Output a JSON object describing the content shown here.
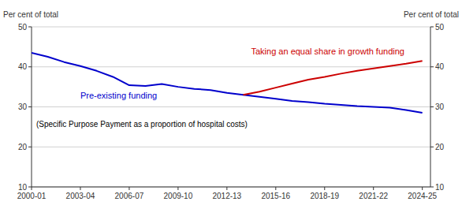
{
  "chart_data": {
    "type": "line",
    "x": [
      2000,
      2001,
      2002,
      2003,
      2004,
      2005,
      2006,
      2007,
      2008,
      2009,
      2010,
      2011,
      2012,
      2013,
      2014,
      2015,
      2016,
      2017,
      2018,
      2019,
      2020,
      2021,
      2022,
      2023,
      2024
    ],
    "series": [
      {
        "name": "Pre-existing funding",
        "color": "#0000cc",
        "values": [
          43.5,
          42.5,
          41.2,
          40.2,
          39.0,
          37.5,
          35.4,
          35.2,
          35.7,
          35.0,
          34.5,
          34.2,
          33.5,
          33.0,
          32.5,
          32.0,
          31.5,
          31.2,
          30.8,
          30.5,
          30.2,
          30.0,
          29.8,
          29.2,
          28.5
        ]
      },
      {
        "name": "Taking an equal share in growth funding",
        "color": "#cc0000",
        "values": [
          null,
          null,
          null,
          null,
          null,
          null,
          null,
          null,
          null,
          null,
          null,
          null,
          null,
          33.0,
          33.8,
          34.8,
          35.8,
          36.8,
          37.5,
          38.3,
          39.0,
          39.6,
          40.2,
          40.8,
          41.5
        ]
      }
    ],
    "xlim": [
      2000,
      2024.5
    ],
    "xticks": [
      {
        "value": 2000,
        "label": "2000-01"
      },
      {
        "value": 2003,
        "label": "2003-04"
      },
      {
        "value": 2006,
        "label": "2006-07"
      },
      {
        "value": 2009,
        "label": "2009-10"
      },
      {
        "value": 2012,
        "label": "2012-13"
      },
      {
        "value": 2015,
        "label": "2015-16"
      },
      {
        "value": 2018,
        "label": "2018-19"
      },
      {
        "value": 2021,
        "label": "2021-22"
      },
      {
        "value": 2024,
        "label": "2024-25"
      }
    ],
    "ylim": [
      10,
      50
    ],
    "yticks": [
      10,
      20,
      30,
      40,
      50
    ],
    "y2lim": [
      10,
      50
    ],
    "y2ticks": [
      10,
      20,
      30,
      40,
      50
    ],
    "ylabel": "Per cent of total",
    "y2label": "Per cent of total",
    "annotations": [
      "(Specific Purpose Payment as a proportion of hospital costs)"
    ],
    "grid": true
  }
}
